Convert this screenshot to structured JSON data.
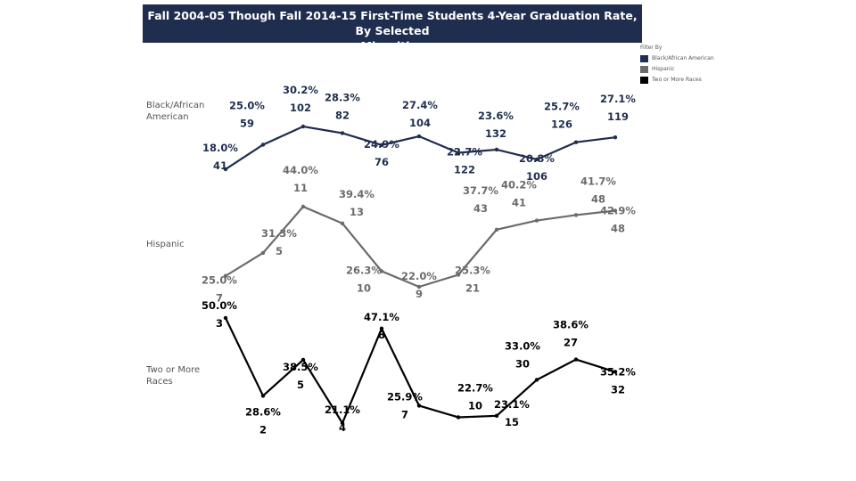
{
  "chart_data": {
    "type": "line",
    "title_lines": [
      "Fall 2004-05 Though Fall 2014-15 First-Time Students 4-Year Graduation Rate, By Selected",
      "Minorities"
    ],
    "legend": {
      "title": "Filter By",
      "entries": [
        "Black/African American",
        "Hispanic",
        "Two or More Races"
      ]
    },
    "series": [
      {
        "name": "Black/African American",
        "label_lines": [
          "Black/African",
          "American"
        ],
        "color": "#1f2d4f",
        "percent_labels": [
          "18.0%",
          "25.0%",
          "30.2%",
          "28.3%",
          "24.9%",
          "27.4%",
          "22.7%",
          "23.6%",
          "20.8%",
          "25.7%",
          "27.1%"
        ],
        "counts": [
          "41",
          "59",
          "102",
          "82",
          "76",
          "104",
          "122",
          "132",
          "106",
          "126",
          "119"
        ],
        "values": [
          18.0,
          25.0,
          30.2,
          28.3,
          24.9,
          27.4,
          22.7,
          23.6,
          20.8,
          25.7,
          27.1
        ]
      },
      {
        "name": "Hispanic",
        "label_lines": [
          "Hispanic"
        ],
        "color": "#6b6b6b",
        "percent_labels": [
          "25.0%",
          "31.3%",
          "44.0%",
          "39.4%",
          "26.3%",
          "22.0%",
          "25.3%",
          "37.7%",
          "40.2%",
          "41.7%",
          "42.9%"
        ],
        "counts": [
          "7",
          "5",
          "11",
          "13",
          "10",
          "9",
          "21",
          "43",
          "41",
          "48",
          "48"
        ],
        "values": [
          25.0,
          31.3,
          44.0,
          39.4,
          26.3,
          22.0,
          25.3,
          37.7,
          40.2,
          41.7,
          42.9
        ]
      },
      {
        "name": "Two or More Races",
        "label_lines": [
          "Two or More",
          "Races"
        ],
        "color": "#000000",
        "percent_labels": [
          "50.0%",
          "28.6%",
          "38.5%",
          "21.1%",
          "47.1%",
          "25.9%",
          "22.7%",
          "23.1%",
          "33.0%",
          "38.6%",
          "35.2%"
        ],
        "counts": [
          "3",
          "2",
          "5",
          "4",
          "8",
          "7",
          "10",
          "15",
          "30",
          "27",
          "32"
        ],
        "values": [
          50.0,
          28.6,
          38.5,
          21.1,
          47.1,
          25.9,
          22.7,
          23.1,
          33.0,
          38.6,
          35.2
        ]
      }
    ]
  }
}
